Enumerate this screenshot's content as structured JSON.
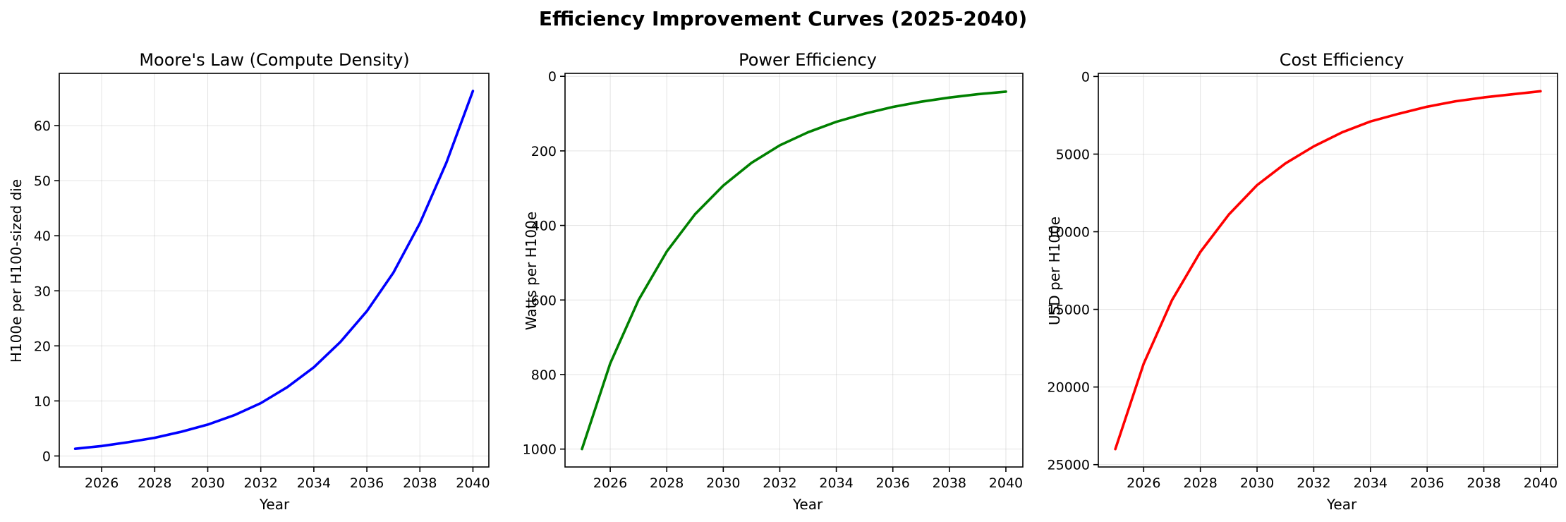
{
  "figure": {
    "suptitle": "Efficiency Improvement Curves (2025-2040)"
  },
  "chart_data": [
    {
      "type": "line",
      "title": "Moore's Law (Compute Density)",
      "xlabel": "Year",
      "ylabel": "H100e per H100-sized die",
      "xlim": [
        2024.4,
        2040.6
      ],
      "ylim": [
        -2,
        69.5
      ],
      "invert_y": false,
      "xticks": [
        2026,
        2028,
        2030,
        2032,
        2034,
        2036,
        2038,
        2040
      ],
      "yticks": [
        0,
        10,
        20,
        30,
        40,
        50,
        60
      ],
      "grid": true,
      "series": [
        {
          "color": "#0000ff",
          "x": [
            2025,
            2026,
            2027,
            2028,
            2029,
            2030,
            2031,
            2032,
            2033,
            2034,
            2035,
            2036,
            2037,
            2038,
            2039,
            2040
          ],
          "y": [
            1.3,
            1.8,
            2.5,
            3.3,
            4.4,
            5.7,
            7.4,
            9.6,
            12.5,
            16.1,
            20.7,
            26.3,
            33.3,
            42.3,
            53.3,
            66.3
          ]
        }
      ]
    },
    {
      "type": "line",
      "title": "Power Efficiency",
      "xlabel": "Year",
      "ylabel": "Watts per H100e",
      "xlim": [
        2024.4,
        2040.6
      ],
      "ylim": [
        1048,
        -8
      ],
      "invert_y": true,
      "xticks": [
        2026,
        2028,
        2030,
        2032,
        2034,
        2036,
        2038,
        2040
      ],
      "yticks": [
        0,
        200,
        400,
        600,
        800,
        1000
      ],
      "grid": true,
      "series": [
        {
          "color": "#008000",
          "x": [
            2025,
            2026,
            2027,
            2028,
            2029,
            2030,
            2031,
            2032,
            2033,
            2034,
            2035,
            2036,
            2037,
            2038,
            2039,
            2040
          ],
          "y": [
            1000,
            770,
            600,
            470,
            370,
            293,
            232,
            185,
            150,
            122,
            100,
            82,
            68,
            57,
            48,
            41
          ]
        }
      ]
    },
    {
      "type": "line",
      "title": "Cost Efficiency",
      "xlabel": "Year",
      "ylabel": "USD per H100e",
      "xlim": [
        2024.4,
        2040.6
      ],
      "ylim": [
        25150,
        -200
      ],
      "invert_y": true,
      "xticks": [
        2026,
        2028,
        2030,
        2032,
        2034,
        2036,
        2038,
        2040
      ],
      "yticks": [
        0,
        5000,
        10000,
        15000,
        20000,
        25000
      ],
      "grid": true,
      "series": [
        {
          "color": "#ff0000",
          "x": [
            2025,
            2026,
            2027,
            2028,
            2029,
            2030,
            2031,
            2032,
            2033,
            2034,
            2035,
            2036,
            2037,
            2038,
            2039,
            2040
          ],
          "y": [
            24000,
            18500,
            14400,
            11300,
            8900,
            7000,
            5600,
            4500,
            3600,
            2900,
            2400,
            1950,
            1600,
            1350,
            1150,
            950
          ]
        }
      ]
    }
  ]
}
